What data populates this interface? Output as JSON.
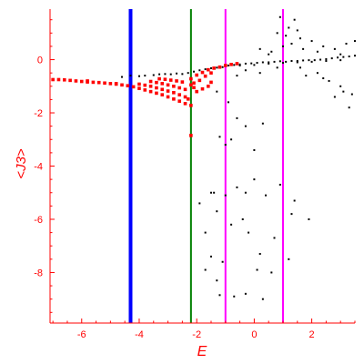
{
  "chart_data": {
    "type": "scatter",
    "xlabel": "E",
    "ylabel": "<J3>",
    "xlim": [
      -7.1,
      3.5
    ],
    "ylim": [
      -9.9,
      1.9
    ],
    "xticks": [
      -6,
      -4,
      -2,
      0,
      2
    ],
    "yticks": [
      0,
      -2,
      -4,
      -6,
      -8
    ],
    "grid": false,
    "colors": {
      "axis": "#ff0000",
      "black_points": "#000000",
      "red_points": "#ff0000",
      "blue_line": "#0000ff",
      "green_line": "#008000",
      "magenta_line": "#ff00ff"
    },
    "vertical_lines": [
      {
        "x": -4.3,
        "color": "#0000ff",
        "width": 4
      },
      {
        "x": -2.2,
        "color": "#008000",
        "width": 2
      },
      {
        "x": -1.0,
        "color": "#ff00ff",
        "width": 2
      },
      {
        "x": 1.0,
        "color": "#ff00ff",
        "width": 2
      }
    ],
    "series": [
      {
        "points": [
          [
            -7.0,
            -0.75
          ],
          [
            -6.8,
            -0.75
          ],
          [
            -6.6,
            -0.76
          ],
          [
            -6.4,
            -0.78
          ],
          [
            -6.2,
            -0.8
          ],
          [
            -6.0,
            -0.82
          ],
          [
            -5.8,
            -0.84
          ],
          [
            -5.6,
            -0.85
          ],
          [
            -5.4,
            -0.86
          ],
          [
            -5.2,
            -0.88
          ],
          [
            -5.0,
            -0.9
          ],
          [
            -4.8,
            -0.92
          ],
          [
            -4.6,
            -0.95
          ],
          [
            -4.4,
            -0.98
          ],
          [
            -4.2,
            -1.02
          ],
          [
            -4.0,
            -1.08
          ],
          [
            -3.8,
            -1.14
          ],
          [
            -3.6,
            -1.2
          ],
          [
            -3.4,
            -1.26
          ],
          [
            -3.2,
            -1.32
          ],
          [
            -3.0,
            -1.4
          ],
          [
            -2.8,
            -1.48
          ],
          [
            -2.6,
            -1.56
          ],
          [
            -2.4,
            -1.65
          ],
          [
            -2.2,
            -1.72
          ],
          [
            -4.0,
            -0.92
          ],
          [
            -3.8,
            -0.96
          ],
          [
            -3.6,
            -1.0
          ],
          [
            -3.4,
            -1.06
          ],
          [
            -3.2,
            -1.12
          ],
          [
            -3.0,
            -1.18
          ],
          [
            -2.8,
            -1.24
          ],
          [
            -2.6,
            -1.32
          ],
          [
            -2.4,
            -1.4
          ],
          [
            -2.3,
            -1.48
          ],
          [
            -3.6,
            -0.82
          ],
          [
            -3.4,
            -0.86
          ],
          [
            -3.2,
            -0.9
          ],
          [
            -3.0,
            -0.95
          ],
          [
            -2.8,
            -1.0
          ],
          [
            -2.6,
            -1.06
          ],
          [
            -2.4,
            -1.12
          ],
          [
            -2.2,
            -0.95
          ],
          [
            -3.3,
            -0.72
          ],
          [
            -3.1,
            -0.74
          ],
          [
            -2.9,
            -0.77
          ],
          [
            -2.7,
            -0.8
          ],
          [
            -2.5,
            -0.84
          ],
          [
            -2.2,
            -0.72
          ],
          [
            -2.0,
            -0.58
          ],
          [
            -1.8,
            -0.48
          ],
          [
            -1.6,
            -0.38
          ],
          [
            -1.4,
            -0.32
          ],
          [
            -1.2,
            -0.28
          ],
          [
            -1.0,
            -0.22
          ],
          [
            -0.8,
            -0.18
          ],
          [
            -0.6,
            -0.15
          ],
          [
            -2.1,
            -0.88
          ],
          [
            -1.9,
            -0.78
          ],
          [
            -1.7,
            -0.62
          ],
          [
            -1.5,
            -0.5
          ],
          [
            -2.1,
            -1.05
          ],
          [
            -2.0,
            -1.2
          ],
          [
            -1.8,
            -1.1
          ],
          [
            -1.6,
            -1.0
          ],
          [
            -1.5,
            -0.85
          ],
          [
            -2.2,
            -2.85
          ],
          [
            -4.8,
            -0.9
          ],
          [
            -5.8,
            -0.8
          ]
        ]
      },
      {
        "points": [
          [
            -4.6,
            -0.65
          ],
          [
            -4.3,
            -0.6
          ],
          [
            -4.0,
            -0.62
          ],
          [
            -3.8,
            -0.6
          ],
          [
            -3.5,
            -0.58
          ],
          [
            -3.3,
            -0.55
          ],
          [
            -3.1,
            -0.54
          ],
          [
            -2.9,
            -0.55
          ],
          [
            -2.7,
            -0.52
          ],
          [
            -2.5,
            -0.54
          ],
          [
            -2.3,
            -0.5
          ],
          [
            -2.1,
            -0.45
          ],
          [
            -1.9,
            -0.4
          ],
          [
            -1.7,
            -0.36
          ],
          [
            -1.5,
            -0.32
          ],
          [
            -1.3,
            -0.3
          ],
          [
            -1.1,
            -0.28
          ],
          [
            -0.9,
            -0.22
          ],
          [
            -0.7,
            -0.2
          ],
          [
            -0.5,
            -0.18
          ],
          [
            -0.3,
            -0.15
          ],
          [
            -0.1,
            -0.14
          ],
          [
            0.1,
            -0.12
          ],
          [
            0.3,
            -0.1
          ],
          [
            0.5,
            -0.1
          ],
          [
            0.7,
            -0.08
          ],
          [
            0.9,
            -0.06
          ],
          [
            1.1,
            -0.08
          ],
          [
            1.3,
            -0.05
          ],
          [
            1.5,
            -0.05
          ],
          [
            1.7,
            -0.03
          ],
          [
            1.9,
            -0.02
          ],
          [
            2.1,
            -0.02
          ],
          [
            2.3,
            0.0
          ],
          [
            2.5,
            0.02
          ],
          [
            2.7,
            0.05
          ],
          [
            2.9,
            0.08
          ],
          [
            3.1,
            0.1
          ],
          [
            3.3,
            0.12
          ],
          [
            3.5,
            0.15
          ],
          [
            -0.5,
            -0.22
          ],
          [
            0.0,
            -0.2
          ],
          [
            0.5,
            -0.15
          ],
          [
            1.0,
            -0.12
          ],
          [
            1.5,
            -0.1
          ],
          [
            2.0,
            -0.08
          ],
          [
            2.5,
            -0.05
          ],
          [
            3.0,
            -0.02
          ],
          [
            0.2,
            0.4
          ],
          [
            0.6,
            0.3
          ],
          [
            1.0,
            0.5
          ],
          [
            1.3,
            0.6
          ],
          [
            1.6,
            0.8
          ],
          [
            0.8,
            1.0
          ],
          [
            1.2,
            1.2
          ],
          [
            1.5,
            1.1
          ],
          [
            0.9,
            1.6
          ],
          [
            1.4,
            1.5
          ],
          [
            2.0,
            0.7
          ],
          [
            2.4,
            0.5
          ],
          [
            2.8,
            0.4
          ],
          [
            3.2,
            0.6
          ],
          [
            3.5,
            0.7
          ],
          [
            1.7,
            0.4
          ],
          [
            2.2,
            0.3
          ],
          [
            3.0,
            0.2
          ],
          [
            0.5,
            0.2
          ],
          [
            1.1,
            0.9
          ],
          [
            -0.6,
            -0.6
          ],
          [
            -0.3,
            -0.4
          ],
          [
            0.2,
            -0.5
          ],
          [
            0.8,
            -0.3
          ],
          [
            1.6,
            -0.3
          ],
          [
            2.2,
            -0.5
          ],
          [
            2.6,
            -0.8
          ],
          [
            3.0,
            -1.0
          ],
          [
            3.4,
            -1.3
          ],
          [
            2.8,
            -1.4
          ],
          [
            3.3,
            -1.8
          ],
          [
            3.1,
            -1.2
          ],
          [
            2.4,
            -0.7
          ],
          [
            1.8,
            -0.6
          ],
          [
            -1.3,
            -1.2
          ],
          [
            -0.9,
            -1.6
          ],
          [
            -0.6,
            -2.2
          ],
          [
            -0.3,
            -2.5
          ],
          [
            0.3,
            -2.4
          ],
          [
            -0.8,
            -3.0
          ],
          [
            0.0,
            -3.4
          ],
          [
            -1.2,
            -2.9
          ],
          [
            -1.0,
            -3.2
          ],
          [
            -1.9,
            -5.4
          ],
          [
            -1.5,
            -5.0
          ],
          [
            -1.0,
            -5.1
          ],
          [
            -0.6,
            -4.8
          ],
          [
            -0.3,
            -5.0
          ],
          [
            0.4,
            -5.1
          ],
          [
            0.9,
            -4.7
          ],
          [
            1.4,
            -5.3
          ],
          [
            -1.3,
            -5.7
          ],
          [
            -0.4,
            -6.0
          ],
          [
            1.3,
            -5.8
          ],
          [
            -1.7,
            -6.5
          ],
          [
            -0.8,
            -6.2
          ],
          [
            -0.2,
            -6.5
          ],
          [
            0.7,
            -6.7
          ],
          [
            1.9,
            -6.0
          ],
          [
            -1.5,
            -7.4
          ],
          [
            -1.1,
            -7.6
          ],
          [
            0.2,
            -7.3
          ],
          [
            1.2,
            -7.5
          ],
          [
            0.1,
            -7.9
          ],
          [
            0.6,
            -8.0
          ],
          [
            -1.7,
            -7.9
          ],
          [
            -1.3,
            -8.3
          ],
          [
            -0.3,
            -8.8
          ],
          [
            -0.7,
            -8.9
          ],
          [
            -1.2,
            -8.85
          ],
          [
            0.3,
            -9.0
          ],
          [
            -1.4,
            -5.0
          ],
          [
            0.0,
            -4.5
          ]
        ]
      }
    ]
  }
}
